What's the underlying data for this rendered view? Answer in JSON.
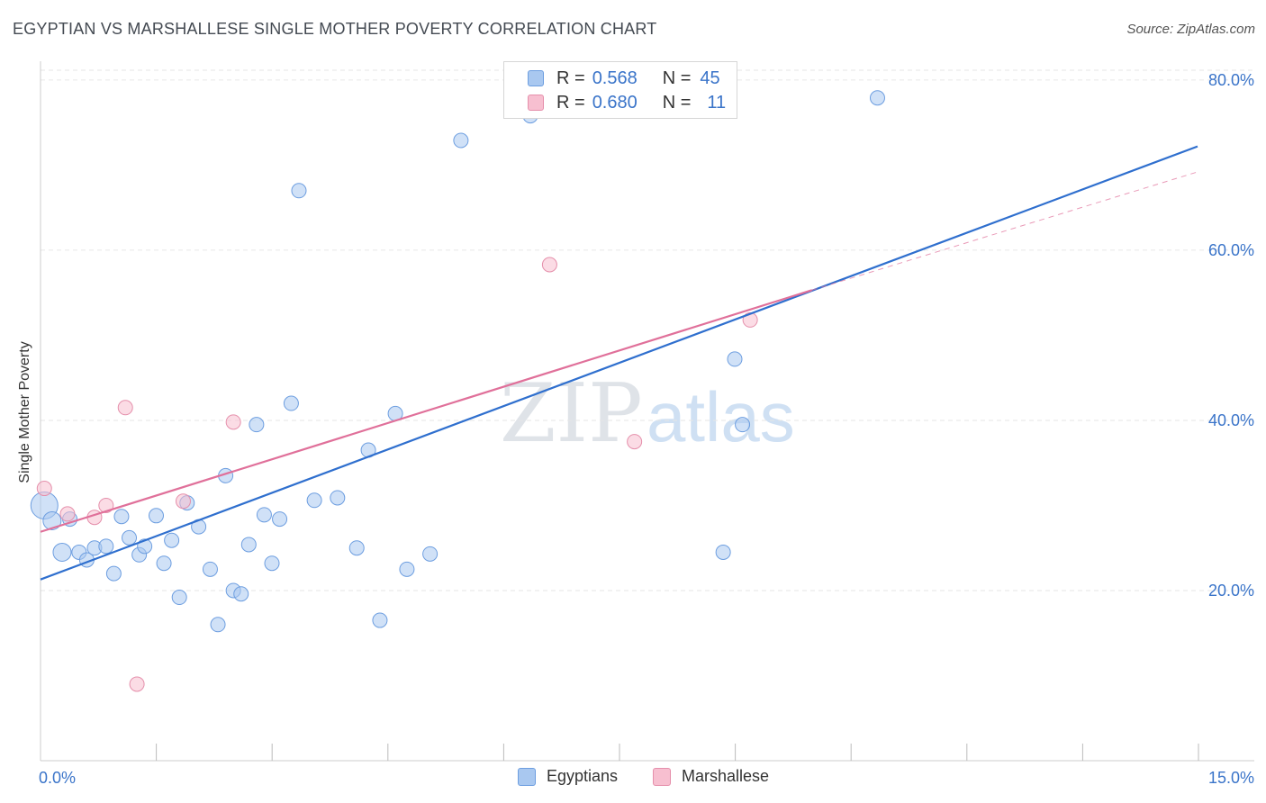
{
  "title": "EGYPTIAN VS MARSHALLESE SINGLE MOTHER POVERTY CORRELATION CHART",
  "source": "Source: ZipAtlas.com",
  "watermark": {
    "zip": "ZIP",
    "atlas": "atlas"
  },
  "legend": {
    "rows": [
      {
        "r_label": "R =",
        "r_value": "0.568",
        "n_label": "N =",
        "n_value": "45",
        "color": "#a9c8f0",
        "stroke": "#6d9ee0"
      },
      {
        "r_label": "R =",
        "r_value": "0.680",
        "n_label": "N =",
        "n_value": "11",
        "color": "#f7bfd0",
        "stroke": "#e58fab"
      }
    ]
  },
  "chart_data": {
    "type": "scatter",
    "title": "EGYPTIAN VS MARSHALLESE SINGLE MOTHER POVERTY CORRELATION CHART",
    "xlabel": "",
    "ylabel": "Single Mother Poverty",
    "xlim": [
      0,
      15
    ],
    "ylim": [
      0,
      82
    ],
    "x_tick_labels": [
      "0.0%",
      "15.0%"
    ],
    "y_ticks": [
      {
        "value": 20,
        "label": "20.0%"
      },
      {
        "value": 40,
        "label": "40.0%"
      },
      {
        "value": 60,
        "label": "60.0%"
      },
      {
        "value": 80,
        "label": "80.0%"
      }
    ],
    "grid": true,
    "legend_position": "top-center",
    "series": [
      {
        "name": "Egyptians",
        "color": "#a9c8f0",
        "stroke": "#6d9ee0",
        "line_color": "#2f6fce",
        "trend": {
          "x0": 0,
          "y0": 21.3,
          "x1": 15,
          "y1": 72.2
        },
        "points": [
          [
            0.05,
            30.0
          ],
          [
            0.15,
            28.2
          ],
          [
            0.28,
            24.5
          ],
          [
            0.38,
            28.4
          ],
          [
            0.5,
            24.5
          ],
          [
            0.6,
            23.6
          ],
          [
            0.7,
            25.0
          ],
          [
            0.85,
            25.2
          ],
          [
            0.95,
            22.0
          ],
          [
            1.05,
            28.7
          ],
          [
            1.15,
            26.2
          ],
          [
            1.28,
            24.2
          ],
          [
            1.35,
            25.2
          ],
          [
            1.5,
            28.8
          ],
          [
            1.6,
            23.2
          ],
          [
            1.7,
            25.9
          ],
          [
            1.8,
            19.2
          ],
          [
            1.9,
            30.3
          ],
          [
            2.05,
            27.5
          ],
          [
            2.2,
            22.5
          ],
          [
            2.3,
            16.0
          ],
          [
            2.4,
            33.5
          ],
          [
            2.5,
            20.0
          ],
          [
            2.6,
            19.6
          ],
          [
            2.7,
            25.4
          ],
          [
            2.8,
            39.5
          ],
          [
            2.9,
            28.9
          ],
          [
            3.0,
            23.2
          ],
          [
            3.1,
            28.4
          ],
          [
            3.25,
            42.0
          ],
          [
            3.35,
            67.0
          ],
          [
            3.55,
            30.6
          ],
          [
            3.85,
            30.9
          ],
          [
            4.1,
            25.0
          ],
          [
            4.25,
            36.5
          ],
          [
            4.6,
            40.8
          ],
          [
            4.4,
            16.5
          ],
          [
            4.75,
            22.5
          ],
          [
            5.05,
            24.3
          ],
          [
            5.45,
            72.9
          ],
          [
            6.35,
            75.8
          ],
          [
            8.85,
            24.5
          ],
          [
            9.0,
            47.2
          ],
          [
            9.1,
            39.5
          ],
          [
            10.85,
            77.9
          ]
        ]
      },
      {
        "name": "Marshallese",
        "color": "#f7bfd0",
        "stroke": "#e58fab",
        "line_color": "#e0709a",
        "trend": {
          "x0": 0,
          "y0": 26.9,
          "x1": 10.0,
          "y1": 55.3
        },
        "trend_extension": {
          "x0": 10.0,
          "y0": 55.3,
          "x1": 15,
          "y1": 69.2
        },
        "points": [
          [
            0.05,
            32.0
          ],
          [
            0.35,
            29.0
          ],
          [
            0.7,
            28.6
          ],
          [
            0.85,
            30.0
          ],
          [
            1.1,
            41.5
          ],
          [
            1.25,
            9.0
          ],
          [
            1.85,
            30.5
          ],
          [
            2.5,
            39.8
          ],
          [
            6.6,
            58.3
          ],
          [
            7.7,
            37.5
          ],
          [
            9.2,
            51.8
          ]
        ]
      }
    ]
  }
}
